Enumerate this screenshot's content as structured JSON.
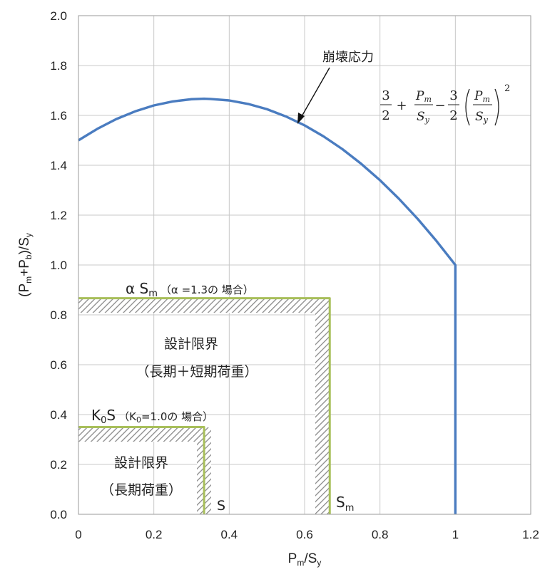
{
  "chart_data": {
    "type": "line",
    "title": "",
    "xlabel": {
      "base": "P",
      "sub1": "m",
      "mid": "/S",
      "sub2": "y"
    },
    "ylabel": {
      "p1": "(P",
      "sub1": "m",
      "p2": "+P",
      "sub2": "b",
      "p3": ")/S",
      "sub3": "y"
    },
    "xlim": [
      0,
      1.2
    ],
    "ylim": [
      0,
      2.0
    ],
    "xticks": [
      0,
      0.2,
      0.4,
      0.6,
      0.8,
      1,
      1.2
    ],
    "xtick_labels": [
      "0",
      "0.2",
      "0.4",
      "0.6",
      "0.8",
      "1",
      "1.2"
    ],
    "yticks": [
      0,
      0.2,
      0.4,
      0.6,
      0.8,
      1.0,
      1.2,
      1.4,
      1.6,
      1.8,
      2.0
    ],
    "ytick_labels": [
      "0.0",
      "0.2",
      "0.4",
      "0.6",
      "0.8",
      "1.0",
      "1.2",
      "1.4",
      "1.6",
      "1.8",
      "2.0"
    ],
    "grid": true,
    "colors": {
      "collapse_curve": "#4a7cc0",
      "limit_lines": "#a8bf5a",
      "hatch": "#8a8a8a",
      "grid": "#c8c8c8"
    },
    "series": [
      {
        "name": "崩壊応力",
        "x": [
          0,
          0.05,
          0.1,
          0.15,
          0.2,
          0.25,
          0.3,
          0.3333,
          0.35,
          0.4,
          0.45,
          0.5,
          0.55,
          0.6,
          0.65,
          0.7,
          0.75,
          0.8,
          0.85,
          0.9,
          0.95,
          1.0,
          1.0,
          1.0
        ],
        "y": [
          1.5,
          1.546,
          1.585,
          1.616,
          1.64,
          1.656,
          1.665,
          1.667,
          1.666,
          1.66,
          1.646,
          1.625,
          1.596,
          1.56,
          1.516,
          1.465,
          1.406,
          1.34,
          1.266,
          1.185,
          1.096,
          1.0,
          0.5,
          0.0
        ]
      },
      {
        "name": "S_m",
        "x": [
          0,
          0.6667,
          0.6667
        ],
        "y": [
          0.8667,
          0.8667,
          0.0
        ]
      },
      {
        "name": "S",
        "x": [
          0,
          0.3333,
          0.3333
        ],
        "y": [
          0.35,
          0.35,
          0.0
        ]
      }
    ],
    "annotations": {
      "collapse_label": "崩壊応力",
      "formula": {
        "n1": "3",
        "d1": "2",
        "plus": "+",
        "n2": "P",
        "n2sub": "m",
        "d2": "S",
        "d2sub": "y",
        "minus": "−",
        "n3": "3",
        "d3": "2",
        "n4": "P",
        "n4sub": "m",
        "d4": "S",
        "d4sub": "y",
        "exp": "2"
      },
      "alpha_label": {
        "main": "α S",
        "sub": "m",
        "note": "（α =1.3の 場合）"
      },
      "k0_label": {
        "main": "K",
        "sub": "0",
        "main2": "S",
        "note1": "（K",
        "note_sub": "0",
        "note2": "=1.0の 場合）"
      },
      "design_limit_combined": [
        "設計限界",
        "（長期＋短期荷重）"
      ],
      "design_limit_long": [
        "設計限界",
        "（長期荷重）"
      ],
      "s_label": "S",
      "sm_label": {
        "main": "S",
        "sub": "m"
      }
    }
  }
}
